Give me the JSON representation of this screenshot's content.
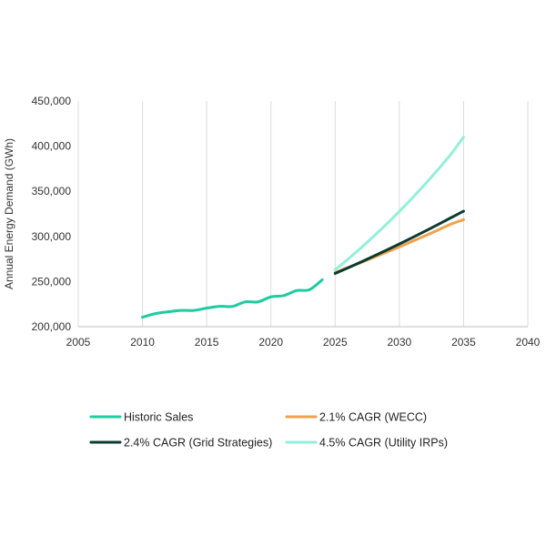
{
  "chart_data": {
    "type": "line",
    "title": "",
    "xlabel": "",
    "ylabel": "Annual Energy Demand (GWh)",
    "xlim": [
      2005,
      2040
    ],
    "ylim": [
      200000,
      450000
    ],
    "x_ticks": [
      "2005",
      "2010",
      "2015",
      "2020",
      "2025",
      "2030",
      "2035",
      "2040"
    ],
    "y_ticks": [
      "200,000",
      "250,000",
      "300,000",
      "350,000",
      "400,000",
      "450,000"
    ],
    "grid": "vertical",
    "legend_position": "bottom",
    "series": [
      {
        "name": "Historic Sales",
        "color": "#1fcb9f",
        "x": [
          2010,
          2011,
          2012,
          2013,
          2014,
          2015,
          2016,
          2017,
          2018,
          2019,
          2020,
          2021,
          2022,
          2023,
          2024
        ],
        "values": [
          210500,
          214500,
          216500,
          218000,
          218000,
          220500,
          222500,
          222500,
          227500,
          227500,
          233000,
          234500,
          240000,
          241000,
          252000
        ]
      },
      {
        "name": "2.1% CAGR (WECC)",
        "color": "#f0a14c",
        "x": [
          2025,
          2026,
          2027,
          2028,
          2029,
          2030,
          2031,
          2032,
          2033,
          2034,
          2035
        ],
        "values": [
          260000,
          265500,
          271000,
          276700,
          282500,
          288400,
          294500,
          300700,
          307000,
          313500,
          318500
        ]
      },
      {
        "name": "2.4% CAGR (Grid Strategies)",
        "color": "#0b3b2e",
        "x": [
          2025,
          2026,
          2027,
          2028,
          2029,
          2030,
          2031,
          2032,
          2033,
          2034,
          2035
        ],
        "values": [
          259000,
          265200,
          271600,
          278100,
          284800,
          291600,
          298600,
          305800,
          313100,
          320600,
          328000
        ]
      },
      {
        "name": "4.5% CAGR (Utility IRPs)",
        "color": "#93efd9",
        "x": [
          2025,
          2026,
          2027,
          2028,
          2029,
          2030,
          2031,
          2032,
          2033,
          2034,
          2035
        ],
        "values": [
          263000,
          274800,
          287200,
          300100,
          313600,
          327700,
          342500,
          357900,
          374000,
          390800,
          410000
        ]
      }
    ]
  }
}
